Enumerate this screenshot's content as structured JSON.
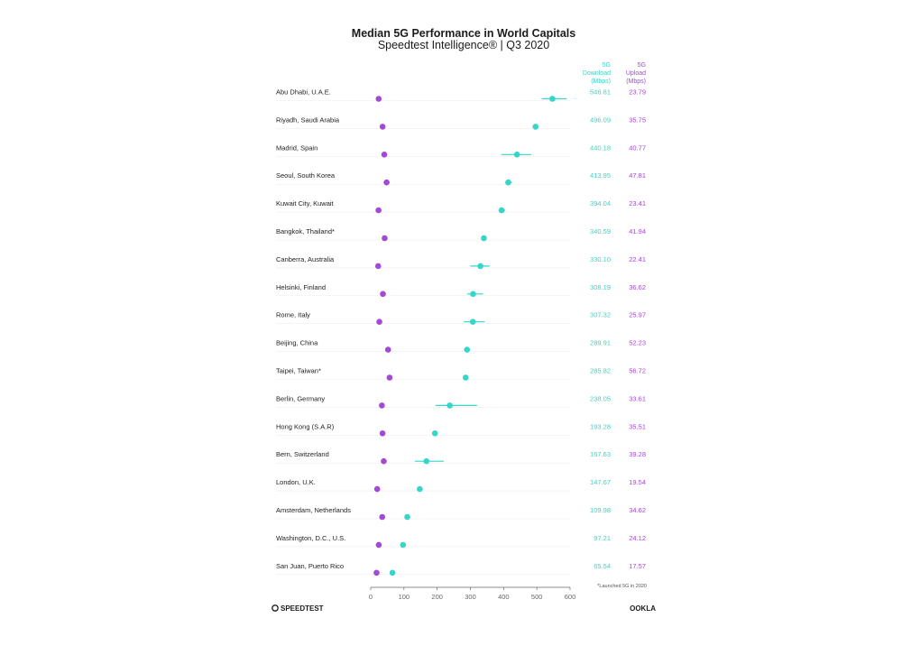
{
  "chart_data": {
    "type": "dot-range",
    "title": "Median 5G Performance in World Capitals",
    "subtitle": "Speedtest Intelligence® | Q3 2020",
    "download_header": [
      "5G",
      "Download",
      "(Mbps)"
    ],
    "upload_header": [
      "5G",
      "Upload",
      "(Mbps)"
    ],
    "xlim": [
      0,
      600
    ],
    "xticks": [
      0,
      100,
      200,
      300,
      400,
      500,
      600
    ],
    "colors": {
      "download": "#35d6c8",
      "upload": "#a349d6"
    },
    "rows": [
      {
        "city": "Abu Dhabi, U.A.E.",
        "download": 546.81,
        "upload": 23.79,
        "range": [
          515,
          590
        ]
      },
      {
        "city": "Riyadh, Saudi Arabia",
        "download": 496.09,
        "upload": 35.75
      },
      {
        "city": "Madrid, Spain",
        "download": 440.18,
        "upload": 40.77,
        "range": [
          393,
          483
        ]
      },
      {
        "city": "Seoul, South Korea",
        "download": 413.95,
        "upload": 47.81,
        "range": [
          405,
          425
        ]
      },
      {
        "city": "Kuwait City, Kuwait",
        "download": 394.04,
        "upload": 23.41,
        "range": [
          385,
          405
        ]
      },
      {
        "city": "Bangkok, Thailand*",
        "download": 340.59,
        "upload": 41.94
      },
      {
        "city": "Canberra, Australia",
        "download": 330.1,
        "upload": 22.41,
        "range": [
          300,
          358
        ]
      },
      {
        "city": "Helsinki, Finland",
        "download": 308.19,
        "upload": 36.62,
        "range": [
          290,
          338
        ]
      },
      {
        "city": "Rome, Italy",
        "download": 307.32,
        "upload": 25.97,
        "range": [
          280,
          343
        ]
      },
      {
        "city": "Beijing, China",
        "download": 289.91,
        "upload": 52.23
      },
      {
        "city": "Taipei, Taiwan*",
        "download": 285.82,
        "upload": 56.72
      },
      {
        "city": "Berlin, Germany",
        "download": 238.05,
        "upload": 33.61,
        "range": [
          195,
          320
        ]
      },
      {
        "city": "Hong Kong (S.A.R)",
        "download": 193.28,
        "upload": 35.51
      },
      {
        "city": "Bern, Switzerland",
        "download": 167.63,
        "upload": 39.28,
        "range": [
          133,
          220
        ]
      },
      {
        "city": "London, U.K.",
        "download": 147.67,
        "upload": 19.54
      },
      {
        "city": "Amsterdam, Netherlands",
        "download": 109.98,
        "upload": 34.62
      },
      {
        "city": "Washington, D.C., U.S.",
        "download": 97.21,
        "upload": 24.12
      },
      {
        "city": "San Juan, Puerto Rico",
        "download": 65.54,
        "upload": 17.57
      }
    ],
    "footnote": "*Launched 5G in 2020"
  },
  "branding": {
    "left_logo": "SPEEDTEST",
    "right_logo": "OOKLA"
  }
}
